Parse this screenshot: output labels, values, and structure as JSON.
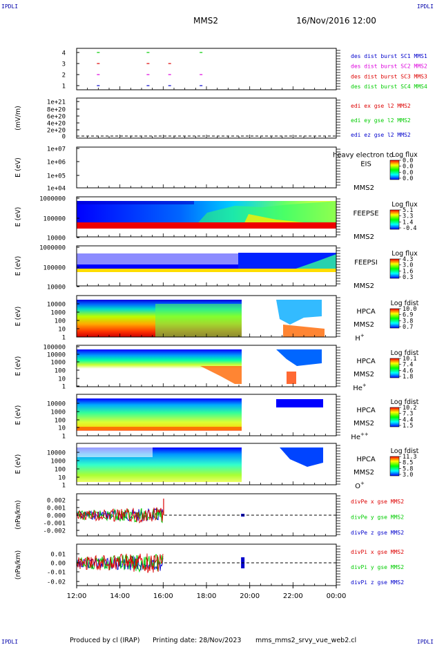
{
  "header": {
    "corner_left_top": "IPDLI",
    "corner_right_top": "IPDLI",
    "corner_left_bottom": "IPDLI",
    "corner_right_bottom": "IPDLI",
    "title": "MMS2",
    "date": "16/Nov/2016 12:00"
  },
  "footer": {
    "produced_by": "Produced by cl (IRAP)",
    "printing_date": "Printing date: 28/Nov/2023",
    "filename": "mms_mms2_srvy_vue_web2.cl"
  },
  "colors": {
    "red": "#dd0000",
    "green": "#00cc00",
    "blue": "#0000cc",
    "magenta": "#dd00dd"
  },
  "chart_data": [
    {
      "id": "burst",
      "type": "scatter",
      "ylabel": "",
      "ticks": [
        "4",
        "3",
        "2",
        "1"
      ],
      "legend": [
        {
          "label": "des dist burst SC1 MMS1",
          "color": "#0000cc"
        },
        {
          "label": "des dist burst SC2 MMS2",
          "color": "#dd00dd"
        },
        {
          "label": "des dist burst SC3 MMS3",
          "color": "#dd0000"
        },
        {
          "label": "des dist burst SC4 MMS4",
          "color": "#00cc00"
        }
      ],
      "series": [
        {
          "name": "des dist burst SC4 MMS4",
          "y": 4,
          "color": "#00cc00",
          "x": [
            13.0,
            15.3,
            17.75
          ]
        },
        {
          "name": "des dist burst SC3 MMS3",
          "y": 3,
          "color": "#dd0000",
          "x": [
            13.0,
            15.3,
            16.3
          ]
        },
        {
          "name": "des dist burst SC2 MMS2",
          "y": 2,
          "color": "#dd00dd",
          "x": [
            13.0,
            15.3,
            16.3,
            17.75
          ]
        },
        {
          "name": "des dist burst SC1 MMS1",
          "y": 1,
          "color": "#0000cc",
          "x": [
            13.0,
            15.3,
            16.3,
            17.75
          ]
        }
      ]
    },
    {
      "id": "edi",
      "type": "line",
      "ylabel": "(mV/m)",
      "ticks": [
        "1e+21",
        "8e+20",
        "6e+20",
        "4e+20",
        "2e+20",
        "0"
      ],
      "legend": [
        {
          "label": "edi ex gse l2 MMS2",
          "color": "#dd0000"
        },
        {
          "label": "edi ey gse l2 MMS2",
          "color": "#00cc00"
        },
        {
          "label": "edi ez gse l2 MMS2",
          "color": "#0000cc"
        }
      ]
    },
    {
      "id": "eis",
      "type": "heatmap",
      "ylabel": "E (eV)",
      "ticks": [
        "1e+07",
        "1e+06",
        "1e+05",
        "1e+04"
      ],
      "inst": "EIS",
      "sc": "MMS2",
      "overlay": "heavy electron to",
      "cbar_title": "Log flux",
      "cbar_ticks": [
        "0.0",
        "0.0",
        "0.0",
        "0.0"
      ]
    },
    {
      "id": "feepse",
      "type": "heatmap",
      "ylabel": "E (eV)",
      "ticks": [
        "1000000",
        "100000",
        "10000"
      ],
      "inst": "FEEPSE",
      "sc": "MMS2",
      "cbar_title": "Log flux",
      "cbar_ticks": [
        "5.1",
        "3.3",
        "1.4",
        "-0.4"
      ]
    },
    {
      "id": "feepsi",
      "type": "heatmap",
      "ylabel": "E (eV)",
      "ticks": [
        "1000000",
        "100000",
        "10000"
      ],
      "inst": "FEEPSI",
      "sc": "MMS2",
      "cbar_title": "Log flux",
      "cbar_ticks": [
        "4.3",
        "3.0",
        "1.6",
        "0.3"
      ]
    },
    {
      "id": "hpca_h",
      "type": "heatmap",
      "ylabel": "E (eV)",
      "ticks": [
        "10000",
        "1000",
        "100",
        "10",
        "1"
      ],
      "inst": "HPCA",
      "sc": "MMS2",
      "species": "H",
      "charge": "+",
      "cbar_title": "Log fdist",
      "cbar_ticks": [
        "10.0",
        "6.9",
        "3.8",
        "0.7"
      ]
    },
    {
      "id": "hpca_he",
      "type": "heatmap",
      "ylabel": "E (eV)",
      "ticks": [
        "100000",
        "10000",
        "1000",
        "100",
        "10",
        "1"
      ],
      "inst": "HPCA",
      "sc": "MMS2",
      "species": "He",
      "charge": "+",
      "cbar_title": "Log fdist",
      "cbar_ticks": [
        "10.1",
        "7.4",
        "4.6",
        "1.8"
      ]
    },
    {
      "id": "hpca_hepp",
      "type": "heatmap",
      "ylabel": "E (eV)",
      "ticks": [
        "10000",
        "1000",
        "100",
        "10",
        "1"
      ],
      "inst": "HPCA",
      "sc": "MMS2",
      "species": "He",
      "charge": "++",
      "cbar_title": "Log fdist",
      "cbar_ticks": [
        "10.2",
        "7.3",
        "4.4",
        "1.5"
      ]
    },
    {
      "id": "hpca_o",
      "type": "heatmap",
      "ylabel": "E (eV)",
      "ticks": [
        "10000",
        "1000",
        "100",
        "10",
        "1"
      ],
      "inst": "HPCA",
      "sc": "MMS2",
      "species": "O",
      "charge": "+",
      "cbar_title": "Log fdist",
      "cbar_ticks": [
        "11.3",
        "8.5",
        "5.8",
        "3.0"
      ]
    },
    {
      "id": "divpe",
      "type": "line",
      "ylabel": "(nPa/km)",
      "ticks": [
        "0.002",
        "0.001",
        "0.000",
        "-0.001",
        "-0.002"
      ],
      "legend": [
        {
          "label": "divPe x gse MMS2",
          "color": "#dd0000"
        },
        {
          "label": "divPe y gse MMS2",
          "color": "#00cc00"
        },
        {
          "label": "divPe z gse MMS2",
          "color": "#0000cc"
        }
      ]
    },
    {
      "id": "divpi",
      "type": "line",
      "ylabel": "(nPa/km)",
      "ticks": [
        "0.01",
        "0.00",
        "-0.01",
        "-0.02"
      ],
      "legend": [
        {
          "label": "divPi x gse MMS2",
          "color": "#dd0000"
        },
        {
          "label": "divPi y gse MMS2",
          "color": "#00cc00"
        },
        {
          "label": "divPi z gse MMS2",
          "color": "#0000cc"
        }
      ]
    }
  ],
  "time_axis": {
    "ticks": [
      "12:00",
      "14:00",
      "16:00",
      "18:00",
      "20:00",
      "22:00",
      "00:00"
    ]
  }
}
